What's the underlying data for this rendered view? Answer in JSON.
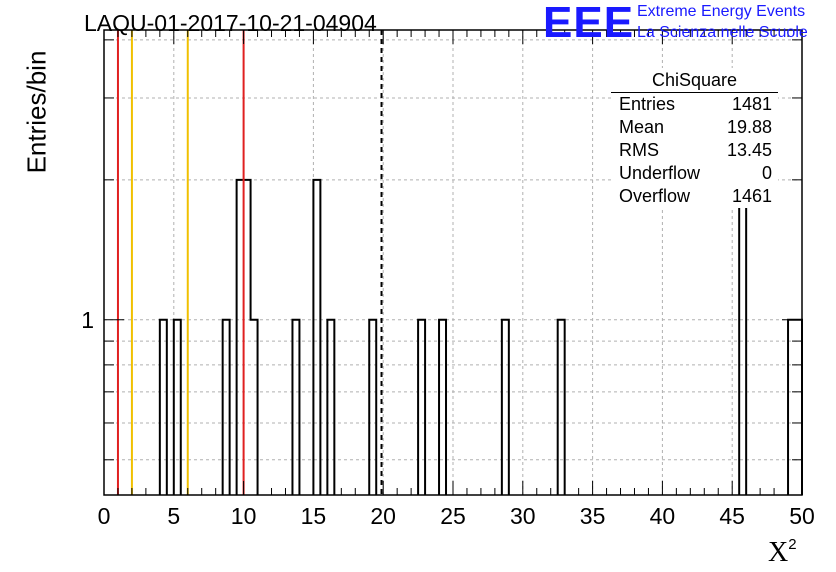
{
  "chart_data": {
    "type": "histogram",
    "title": "LAQU-01-2017-10-21-04904",
    "xlabel": "X",
    "xlabel_superscript": "2",
    "ylabel": "Entries/bin",
    "xlim": [
      0,
      50
    ],
    "ylim": [
      0.42,
      4.2
    ],
    "y_scale": "log",
    "x_ticks": [
      "0",
      "5",
      "10",
      "15",
      "20",
      "25",
      "30",
      "35",
      "40",
      "45",
      "50"
    ],
    "y_ticks": [
      "1"
    ],
    "grid": true,
    "bin_width": 0.5,
    "bins": [
      {
        "x": 4,
        "count": 1
      },
      {
        "x": 5,
        "count": 1
      },
      {
        "x": 8.5,
        "count": 1
      },
      {
        "x": 9.5,
        "count": 2
      },
      {
        "x": 10,
        "count": 2
      },
      {
        "x": 10.5,
        "count": 1
      },
      {
        "x": 13.5,
        "count": 1
      },
      {
        "x": 15,
        "count": 2
      },
      {
        "x": 16,
        "count": 1
      },
      {
        "x": 19,
        "count": 1
      },
      {
        "x": 22.5,
        "count": 1
      },
      {
        "x": 24,
        "count": 1
      },
      {
        "x": 28.5,
        "count": 1
      },
      {
        "x": 32.5,
        "count": 1
      },
      {
        "x": 45.5,
        "count": 2
      },
      {
        "x": 49,
        "count": 1
      },
      {
        "x": 49.5,
        "count": 1
      }
    ],
    "vertical_lines": [
      {
        "x": 1,
        "color": "#e02020",
        "style": "solid"
      },
      {
        "x": 2,
        "color": "#f0c000",
        "style": "solid"
      },
      {
        "x": 6,
        "color": "#f0c000",
        "style": "solid"
      },
      {
        "x": 10,
        "color": "#e02020",
        "style": "solid"
      },
      {
        "x": 19.88,
        "color": "#000000",
        "style": "dashed"
      }
    ]
  },
  "logo": {
    "text": "EEE",
    "line1": "Extreme Energy Events",
    "line2": "La Scienza nelle Scuole",
    "color": "#1a1aff"
  },
  "stats": {
    "title": "ChiSquare",
    "rows": [
      {
        "label": "Entries",
        "value": "1481"
      },
      {
        "label": "Mean",
        "value": "19.88"
      },
      {
        "label": "RMS",
        "value": "13.45"
      },
      {
        "label": "Underflow",
        "value": "0"
      },
      {
        "label": "Overflow",
        "value": "1461"
      }
    ]
  }
}
